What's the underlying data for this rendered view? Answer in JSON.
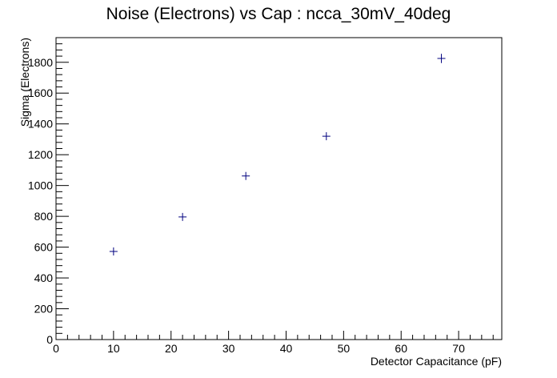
{
  "chart_data": {
    "type": "scatter",
    "title": "Noise (Electrons) vs Cap : ncca_30mV_40deg",
    "xlabel": "Detector Capacitance (pF)",
    "ylabel": "Sigma (Electrons)",
    "xlim": [
      0,
      77.5
    ],
    "ylim": [
      0,
      1960
    ],
    "x_ticks": [
      0,
      10,
      20,
      30,
      40,
      50,
      60,
      70
    ],
    "y_ticks": [
      0,
      200,
      400,
      600,
      800,
      1000,
      1200,
      1400,
      1600,
      1800
    ],
    "grid": false,
    "marker_color": "#00007f",
    "series": [
      {
        "points": [
          {
            "x": 10,
            "y": 572,
            "err": 8
          },
          {
            "x": 22,
            "y": 796,
            "err": 10
          },
          {
            "x": 33,
            "y": 1062,
            "err": 15
          },
          {
            "x": 47,
            "y": 1320,
            "err": 15
          },
          {
            "x": 67,
            "y": 1825,
            "err": 30
          }
        ]
      }
    ]
  }
}
